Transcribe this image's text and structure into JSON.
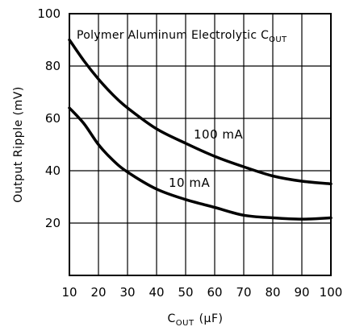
{
  "chart_data": {
    "type": "line",
    "title": "",
    "annotation": {
      "text": "Polymer Aluminum Electrolytic C",
      "subscript": "OUT"
    },
    "xlabel": {
      "text": "C",
      "subscript": "OUT",
      "unit": "(μF)"
    },
    "ylabel": "Output Ripple (mV)",
    "xlim": [
      10,
      100
    ],
    "ylim": [
      0,
      100
    ],
    "x_ticks": [
      10,
      20,
      30,
      40,
      50,
      60,
      70,
      80,
      90,
      100
    ],
    "y_ticks": [
      20,
      40,
      60,
      80,
      100
    ],
    "grid": true,
    "series": [
      {
        "name": "100 mA",
        "x": [
          10,
          15,
          20,
          25,
          30,
          40,
          50,
          60,
          70,
          80,
          90,
          100
        ],
        "y": [
          90,
          82,
          75,
          69,
          64,
          56,
          50.5,
          45.5,
          41.5,
          38,
          36,
          35
        ]
      },
      {
        "name": "10 mA",
        "x": [
          10,
          15,
          20,
          25,
          30,
          40,
          50,
          60,
          70,
          80,
          90,
          100
        ],
        "y": [
          64,
          58,
          50,
          44,
          39.5,
          33,
          29,
          26,
          23,
          22,
          21.5,
          22
        ]
      }
    ]
  }
}
